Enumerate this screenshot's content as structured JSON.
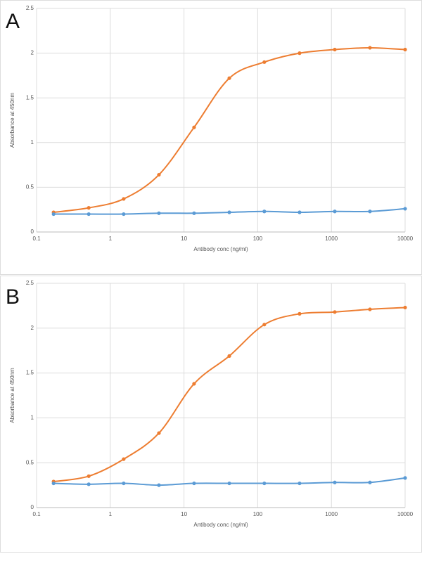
{
  "chart_data": [
    {
      "type": "line",
      "panel_label": "A",
      "xlabel": "Antibody conc (ng/ml)",
      "ylabel": "Absorbance at 450nm",
      "xscale": "log",
      "grid": true,
      "x": [
        0.17,
        0.51,
        1.52,
        4.57,
        13.7,
        41.2,
        123,
        370,
        1111,
        3333,
        10000
      ],
      "series": [
        {
          "color": "#ed7d31",
          "values": [
            0.22,
            0.27,
            0.37,
            0.64,
            1.17,
            1.72,
            1.9,
            2.0,
            2.04,
            2.06,
            2.04
          ]
        },
        {
          "color": "#5b9bd5",
          "values": [
            0.2,
            0.2,
            0.2,
            0.21,
            0.21,
            0.22,
            0.23,
            0.22,
            0.23,
            0.23,
            0.26
          ]
        }
      ],
      "xlim": [
        0.1,
        10000
      ],
      "xticks": [
        0.1,
        1,
        10,
        100,
        1000,
        10000
      ],
      "ylim": [
        0,
        2.5
      ],
      "yticks": [
        0,
        0.5,
        1,
        1.5,
        2,
        2.5
      ]
    },
    {
      "type": "line",
      "panel_label": "B",
      "xlabel": "Antibody conc (ng/ml)",
      "ylabel": "Absorbance at 450nm",
      "xscale": "log",
      "grid": true,
      "x": [
        0.17,
        0.51,
        1.52,
        4.57,
        13.7,
        41.2,
        123,
        370,
        1111,
        3333,
        10000
      ],
      "series": [
        {
          "color": "#ed7d31",
          "values": [
            0.29,
            0.35,
            0.54,
            0.83,
            1.38,
            1.69,
            2.04,
            2.16,
            2.18,
            2.21,
            2.23
          ]
        },
        {
          "color": "#5b9bd5",
          "values": [
            0.27,
            0.26,
            0.27,
            0.25,
            0.27,
            0.27,
            0.27,
            0.27,
            0.28,
            0.28,
            0.33
          ]
        }
      ],
      "xlim": [
        0.1,
        10000
      ],
      "xticks": [
        0.1,
        1,
        10,
        100,
        1000,
        10000
      ],
      "ylim": [
        0,
        2.5
      ],
      "yticks": [
        0,
        0.5,
        1,
        1.5,
        2,
        2.5
      ]
    }
  ]
}
